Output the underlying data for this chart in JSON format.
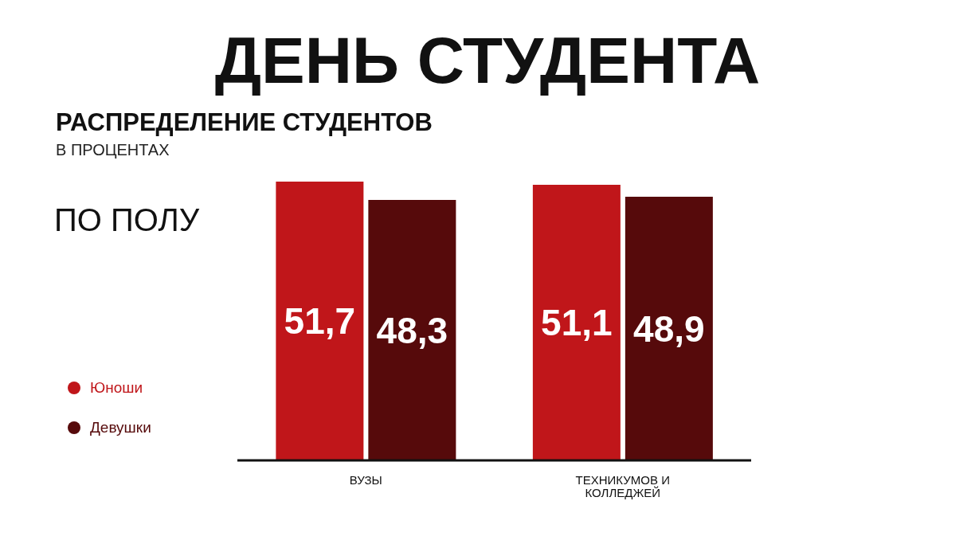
{
  "chart_data": {
    "type": "bar",
    "title": "ДЕНЬ СТУДЕНТА",
    "subtitle": "РАСПРЕДЕЛЕНИЕ СТУДЕНТОВ",
    "annotations": [
      "В ПРОЦЕНТАХ",
      "ПО ПОЛУ"
    ],
    "categories": [
      "ВУЗЫ",
      "ТЕХНИКУМОВ И КОЛЛЕДЖЕЙ"
    ],
    "series": [
      {
        "name": "Юноши",
        "color": "#c0161a",
        "values": [
          51.7,
          51.1
        ],
        "value_labels": [
          "51,7",
          "51,1"
        ]
      },
      {
        "name": "Девушки",
        "color": "#560a0b",
        "values": [
          48.3,
          48.9
        ],
        "value_labels": [
          "48,3",
          "48,9"
        ]
      }
    ],
    "legend": "left",
    "grid": false
  }
}
